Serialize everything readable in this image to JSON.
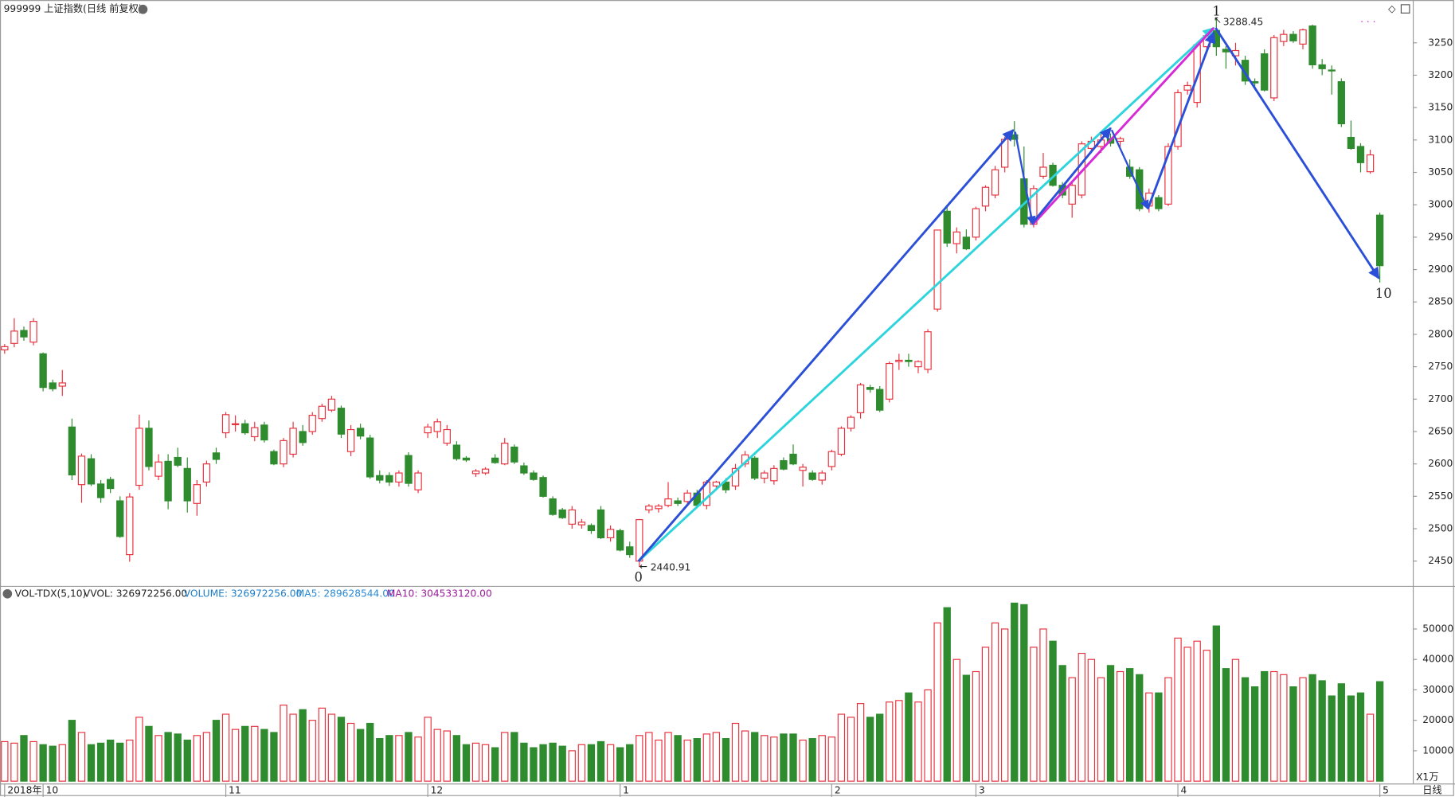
{
  "chart_data": {
    "type": "candlestick",
    "title": "999999 上证指数(日线 前复权)",
    "period_label": "日线",
    "up_color": "#e8303c",
    "down_color": "#2e8b2e",
    "ylim": [
      2411,
      3316
    ],
    "yticks": [
      2450,
      2500,
      2550,
      2600,
      2650,
      2700,
      2750,
      2800,
      2850,
      2900,
      2950,
      3000,
      3050,
      3100,
      3150,
      3200,
      3250
    ],
    "annotations": [
      "0",
      "1",
      "10"
    ],
    "categories": [
      "2018年",
      null,
      null,
      null,
      "10",
      null,
      null,
      null,
      null,
      null,
      null,
      null,
      null,
      null,
      null,
      null,
      null,
      null,
      null,
      null,
      null,
      null,
      null,
      "11",
      null,
      null,
      null,
      null,
      null,
      null,
      null,
      null,
      null,
      null,
      null,
      null,
      null,
      null,
      null,
      null,
      null,
      null,
      null,
      null,
      "12",
      null,
      null,
      null,
      null,
      null,
      null,
      null,
      null,
      null,
      null,
      null,
      null,
      null,
      null,
      null,
      null,
      null,
      null,
      null,
      "1",
      null,
      null,
      null,
      null,
      null,
      null,
      null,
      null,
      null,
      null,
      null,
      null,
      null,
      null,
      null,
      null,
      null,
      null,
      null,
      null,
      null,
      "2",
      null,
      null,
      null,
      null,
      null,
      null,
      null,
      null,
      null,
      null,
      null,
      null,
      null,
      null,
      "3",
      null,
      null,
      null,
      null,
      null,
      null,
      null,
      null,
      null,
      null,
      null,
      null,
      null,
      null,
      null,
      null,
      null,
      null,
      null,
      null,
      "4",
      null,
      null,
      null,
      null,
      null,
      null,
      null,
      null,
      null,
      null,
      null,
      null,
      null,
      null,
      null,
      null,
      null,
      null,
      null,
      null,
      "5"
    ],
    "candles": [
      [
        2776,
        2785,
        2770,
        2781
      ],
      [
        2786,
        2825,
        2780,
        2805
      ],
      [
        2806,
        2812,
        2790,
        2796
      ],
      [
        2788,
        2825,
        2783,
        2820
      ],
      [
        2770,
        2772,
        2712,
        2718
      ],
      [
        2725,
        2730,
        2712,
        2716
      ],
      [
        2720,
        2745,
        2705,
        2725
      ],
      [
        2657,
        2670,
        2575,
        2583
      ],
      [
        2568,
        2616,
        2540,
        2612
      ],
      [
        2608,
        2615,
        2566,
        2569
      ],
      [
        2569,
        2575,
        2540,
        2548
      ],
      [
        2576,
        2580,
        2555,
        2562
      ],
      [
        2543,
        2550,
        2486,
        2488
      ],
      [
        2460,
        2555,
        2449,
        2549
      ],
      [
        2567,
        2676,
        2560,
        2655
      ],
      [
        2655,
        2667,
        2590,
        2596
      ],
      [
        2581,
        2615,
        2575,
        2603
      ],
      [
        2604,
        2615,
        2530,
        2543
      ],
      [
        2610,
        2625,
        2595,
        2598
      ],
      [
        2593,
        2610,
        2525,
        2543
      ],
      [
        2539,
        2575,
        2520,
        2568
      ],
      [
        2572,
        2605,
        2565,
        2600
      ],
      [
        2617,
        2625,
        2600,
        2607
      ],
      [
        2648,
        2680,
        2640,
        2676
      ],
      [
        2662,
        2675,
        2650,
        2662
      ],
      [
        2662,
        2668,
        2645,
        2648
      ],
      [
        2642,
        2665,
        2635,
        2656
      ],
      [
        2660,
        2665,
        2633,
        2637
      ],
      [
        2619,
        2622,
        2598,
        2600
      ],
      [
        2600,
        2640,
        2595,
        2636
      ],
      [
        2615,
        2665,
        2610,
        2655
      ],
      [
        2650,
        2660,
        2628,
        2633
      ],
      [
        2650,
        2680,
        2645,
        2675
      ],
      [
        2670,
        2693,
        2665,
        2689
      ],
      [
        2683,
        2705,
        2680,
        2700
      ],
      [
        2686,
        2690,
        2640,
        2646
      ],
      [
        2619,
        2660,
        2612,
        2653
      ],
      [
        2655,
        2662,
        2638,
        2643
      ],
      [
        2640,
        2645,
        2577,
        2580
      ],
      [
        2582,
        2590,
        2570,
        2575
      ],
      [
        2582,
        2587,
        2566,
        2572
      ],
      [
        2572,
        2590,
        2565,
        2586
      ],
      [
        2613,
        2618,
        2565,
        2570
      ],
      [
        2560,
        2590,
        2555,
        2586
      ],
      [
        2648,
        2662,
        2640,
        2657
      ],
      [
        2650,
        2670,
        2640,
        2665
      ],
      [
        2632,
        2660,
        2628,
        2653
      ],
      [
        2629,
        2635,
        2605,
        2608
      ],
      [
        2609,
        2612,
        2603,
        2606
      ],
      [
        2585,
        2592,
        2580,
        2589
      ],
      [
        2586,
        2595,
        2583,
        2592
      ],
      [
        2609,
        2615,
        2600,
        2602
      ],
      [
        2600,
        2640,
        2598,
        2632
      ],
      [
        2626,
        2630,
        2600,
        2603
      ],
      [
        2597,
        2602,
        2583,
        2586
      ],
      [
        2586,
        2590,
        2574,
        2576
      ],
      [
        2579,
        2582,
        2548,
        2550
      ],
      [
        2546,
        2550,
        2520,
        2522
      ],
      [
        2529,
        2532,
        2515,
        2517
      ],
      [
        2507,
        2535,
        2500,
        2529
      ],
      [
        2506,
        2515,
        2500,
        2510
      ],
      [
        2505,
        2508,
        2492,
        2497
      ],
      [
        2529,
        2535,
        2484,
        2486
      ],
      [
        2486,
        2505,
        2480,
        2499
      ],
      [
        2497,
        2500,
        2465,
        2467
      ],
      [
        2472,
        2480,
        2455,
        2460
      ],
      [
        2450,
        2515,
        2440.91,
        2514
      ],
      [
        2529,
        2538,
        2524,
        2535
      ],
      [
        2531,
        2538,
        2525,
        2535
      ],
      [
        2536,
        2572,
        2533,
        2546
      ],
      [
        2543,
        2548,
        2535,
        2539
      ],
      [
        2542,
        2560,
        2538,
        2555
      ],
      [
        2555,
        2560,
        2534,
        2536
      ],
      [
        2536,
        2575,
        2530,
        2572
      ],
      [
        2566,
        2574,
        2563,
        2572
      ],
      [
        2572,
        2578,
        2555,
        2560
      ],
      [
        2566,
        2600,
        2560,
        2593
      ],
      [
        2600,
        2620,
        2595,
        2614
      ],
      [
        2609,
        2612,
        2575,
        2578
      ],
      [
        2578,
        2590,
        2570,
        2586
      ],
      [
        2574,
        2598,
        2568,
        2593
      ],
      [
        2605,
        2610,
        2590,
        2592
      ],
      [
        2615,
        2630,
        2598,
        2600
      ],
      [
        2590,
        2600,
        2565,
        2595
      ],
      [
        2586,
        2590,
        2574,
        2576
      ],
      [
        2575,
        2590,
        2568,
        2586
      ],
      [
        2596,
        2622,
        2590,
        2619
      ],
      [
        2615,
        2658,
        2612,
        2655
      ],
      [
        2655,
        2675,
        2650,
        2672
      ],
      [
        2679,
        2725,
        2670,
        2722
      ],
      [
        2718,
        2722,
        2710,
        2715
      ],
      [
        2715,
        2720,
        2680,
        2683
      ],
      [
        2700,
        2758,
        2695,
        2755
      ],
      [
        2758,
        2770,
        2745,
        2760
      ],
      [
        2760,
        2770,
        2750,
        2758
      ],
      [
        2750,
        2760,
        2740,
        2758
      ],
      [
        2746,
        2808,
        2740,
        2804
      ],
      [
        2839,
        2961,
        2835,
        2961
      ],
      [
        2990,
        3000,
        2935,
        2941
      ],
      [
        2940,
        2965,
        2925,
        2958
      ],
      [
        2950,
        2962,
        2930,
        2932
      ],
      [
        2950,
        2997,
        2945,
        2994
      ],
      [
        2998,
        3030,
        2990,
        3027
      ],
      [
        3015,
        3060,
        3010,
        3054
      ],
      [
        3058,
        3105,
        3050,
        3101
      ],
      [
        3108,
        3129,
        3090,
        3101
      ],
      [
        3040,
        3090,
        2965,
        2970
      ],
      [
        2970,
        3030,
        2965,
        3025
      ],
      [
        3044,
        3080,
        3040,
        3058
      ],
      [
        3061,
        3065,
        3028,
        3030
      ],
      [
        3030,
        3035,
        3010,
        3015
      ],
      [
        3001,
        3035,
        2980,
        3030
      ],
      [
        3015,
        3098,
        3010,
        3094
      ],
      [
        3087,
        3105,
        3080,
        3098
      ],
      [
        3090,
        3110,
        3080,
        3100
      ],
      [
        3102,
        3110,
        3090,
        3095
      ],
      [
        3098,
        3105,
        3085,
        3102
      ],
      [
        3058,
        3070,
        3040,
        3044
      ],
      [
        3054,
        3058,
        2990,
        2994
      ],
      [
        2998,
        3025,
        2988,
        3018
      ],
      [
        3011,
        3015,
        2990,
        2994
      ],
      [
        3001,
        3095,
        2998,
        3090
      ],
      [
        3090,
        3178,
        3085,
        3173
      ],
      [
        3177,
        3190,
        3170,
        3184
      ],
      [
        3158,
        3250,
        3150,
        3247
      ],
      [
        3244,
        3265,
        3235,
        3261
      ],
      [
        3269,
        3288.45,
        3230,
        3244
      ],
      [
        3240,
        3245,
        3210,
        3236
      ],
      [
        3230,
        3250,
        3215,
        3238
      ],
      [
        3223,
        3230,
        3185,
        3191
      ],
      [
        3190,
        3195,
        3180,
        3188
      ],
      [
        3233,
        3240,
        3175,
        3177
      ],
      [
        3165,
        3262,
        3160,
        3258
      ],
      [
        3252,
        3270,
        3245,
        3263
      ],
      [
        3263,
        3268,
        3250,
        3253
      ],
      [
        3248,
        3272,
        3240,
        3270
      ],
      [
        3276,
        3278,
        3210,
        3216
      ],
      [
        3216,
        3225,
        3200,
        3210
      ],
      [
        3208,
        3215,
        3170,
        3207
      ],
      [
        3190,
        3195,
        3120,
        3125
      ],
      [
        3104,
        3130,
        3085,
        3087
      ],
      [
        3090,
        3095,
        3050,
        3065
      ],
      [
        3051,
        3085,
        3048,
        3077
      ],
      [
        2984,
        2988,
        2880,
        2906
      ]
    ],
    "volume": {
      "indicator": "VOL-TDX(5,10)",
      "unit_label": "X1万",
      "legend": [
        {
          "text": "VVOL: 326972256.00",
          "color": "#222222"
        },
        {
          "text": "VOLUME: 326972256.00",
          "color": "#1e7ec8"
        },
        {
          "text": "MA5: 289628544.00",
          "color": "#2a8ad6"
        },
        {
          "text": "MA10: 304533120.00",
          "color": "#9b1b9b"
        }
      ],
      "ylim": [
        0,
        64000
      ],
      "yticks": [
        10000,
        20000,
        30000,
        40000,
        50000
      ],
      "values": [
        13000,
        12500,
        15000,
        13000,
        12000,
        11500,
        12000,
        20000,
        16000,
        12000,
        12500,
        13500,
        12500,
        13500,
        21000,
        18000,
        15000,
        16000,
        15500,
        13500,
        15000,
        16000,
        20000,
        22000,
        17000,
        18000,
        18000,
        17000,
        16000,
        25000,
        22000,
        23500,
        20000,
        24000,
        22000,
        21000,
        19000,
        17000,
        19000,
        14000,
        15000,
        15000,
        16000,
        14500,
        21000,
        17000,
        16500,
        15000,
        12000,
        12500,
        12000,
        11000,
        16000,
        16000,
        12500,
        11000,
        12000,
        12500,
        11500,
        10000,
        12000,
        12000,
        13000,
        12000,
        11000,
        12000,
        15000,
        16000,
        13500,
        16000,
        15000,
        13500,
        14000,
        15500,
        16000,
        14000,
        19000,
        16500,
        16000,
        15000,
        14500,
        15500,
        15500,
        13500,
        14000,
        15000,
        14500,
        22000,
        21000,
        25500,
        21000,
        22000,
        26000,
        26500,
        29000,
        26000,
        30000,
        52000,
        57000,
        40000,
        34800,
        36000,
        44000,
        52000,
        50000,
        58500,
        58000,
        44000,
        50000,
        46000,
        38000,
        34000,
        42000,
        40000,
        34000,
        38000,
        36000,
        37000,
        35000,
        29000,
        29000,
        34000,
        47000,
        44000,
        46000,
        43000,
        51000,
        37000,
        40000,
        34000,
        31000,
        36000,
        36000,
        35000,
        31000,
        34000,
        35000,
        33000,
        28000,
        32000,
        28000,
        29000,
        22000,
        32697
      ]
    }
  }
}
